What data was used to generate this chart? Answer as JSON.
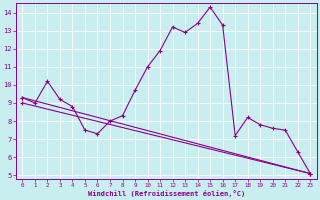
{
  "bg_color": "#c8eef0",
  "line_color": "#8b008b",
  "xlim": [
    -0.5,
    23.5
  ],
  "ylim": [
    4.8,
    14.5
  ],
  "xticks": [
    0,
    1,
    2,
    3,
    4,
    5,
    6,
    7,
    8,
    9,
    10,
    11,
    12,
    13,
    14,
    15,
    16,
    17,
    18,
    19,
    20,
    21,
    22,
    23
  ],
  "yticks": [
    5,
    6,
    7,
    8,
    9,
    10,
    11,
    12,
    13,
    14
  ],
  "xlabel": "Windchill (Refroidissement éolien,°C)",
  "line1_x": [
    0,
    1,
    2,
    3,
    4,
    5,
    6,
    7,
    8,
    9,
    10,
    11,
    12,
    13,
    14,
    15,
    16,
    17,
    18,
    19,
    20,
    21,
    22,
    23
  ],
  "line1_y": [
    9.3,
    9.0,
    10.2,
    9.2,
    8.8,
    7.5,
    7.3,
    8.0,
    8.3,
    9.7,
    11.0,
    11.9,
    13.2,
    12.9,
    13.4,
    14.3,
    13.3,
    7.2,
    8.2,
    7.8,
    7.6,
    7.5,
    6.3,
    5.1
  ],
  "line2_x": [
    0,
    23
  ],
  "line2_y": [
    9.3,
    5.1
  ],
  "line3_x": [
    0,
    23
  ],
  "line3_y": [
    9.0,
    5.1
  ]
}
